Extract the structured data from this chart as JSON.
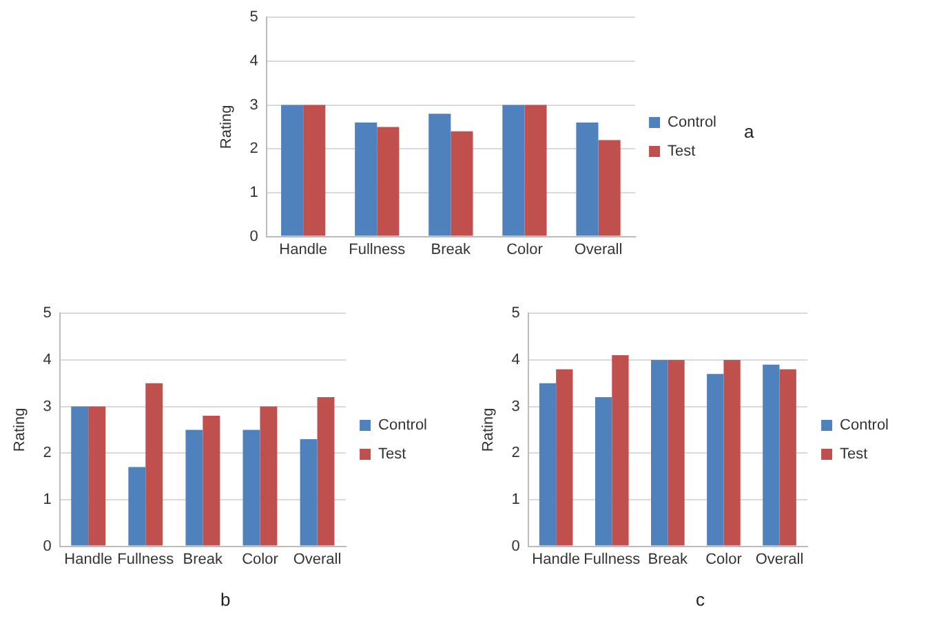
{
  "chart_data": [
    {
      "type": "bar",
      "ylabel": "Rating",
      "categories": [
        "Handle",
        "Fullness",
        "Break",
        "Color",
        "Overall"
      ],
      "series": [
        {
          "name": "Control",
          "color": "#4f81bd",
          "values": [
            3,
            2.6,
            2.8,
            3,
            2.6
          ]
        },
        {
          "name": "Test",
          "color": "#c0504d",
          "values": [
            3,
            2.5,
            2.4,
            3,
            2.2
          ]
        }
      ],
      "ylim": [
        0,
        5
      ],
      "yticks": [
        0,
        1,
        2,
        3,
        4,
        5
      ],
      "grid": "y",
      "legend": "right",
      "annotations": [
        "a"
      ]
    },
    {
      "type": "bar",
      "ylabel": "Rating",
      "categories": [
        "Handle",
        "Fullness",
        "Break",
        "Color",
        "Overall"
      ],
      "series": [
        {
          "name": "Control",
          "color": "#4f81bd",
          "values": [
            3,
            1.7,
            2.5,
            2.5,
            2.3
          ]
        },
        {
          "name": "Test",
          "color": "#c0504d",
          "values": [
            3,
            3.5,
            2.8,
            3,
            3.2
          ]
        }
      ],
      "ylim": [
        0,
        5
      ],
      "yticks": [
        0,
        1,
        2,
        3,
        4,
        5
      ],
      "grid": "y",
      "legend": "right",
      "annotations": [
        "b"
      ]
    },
    {
      "type": "bar",
      "ylabel": "Rating",
      "categories": [
        "Handle",
        "Fullness",
        "Break",
        "Color",
        "Overall"
      ],
      "series": [
        {
          "name": "Control",
          "color": "#4f81bd",
          "values": [
            3.5,
            3.2,
            4,
            3.7,
            3.9
          ]
        },
        {
          "name": "Test",
          "color": "#c0504d",
          "values": [
            3.8,
            4.1,
            4,
            4,
            3.8
          ]
        }
      ],
      "ylim": [
        0,
        5
      ],
      "yticks": [
        0,
        1,
        2,
        3,
        4,
        5
      ],
      "grid": "y",
      "legend": "right",
      "annotations": [
        "c"
      ]
    }
  ]
}
